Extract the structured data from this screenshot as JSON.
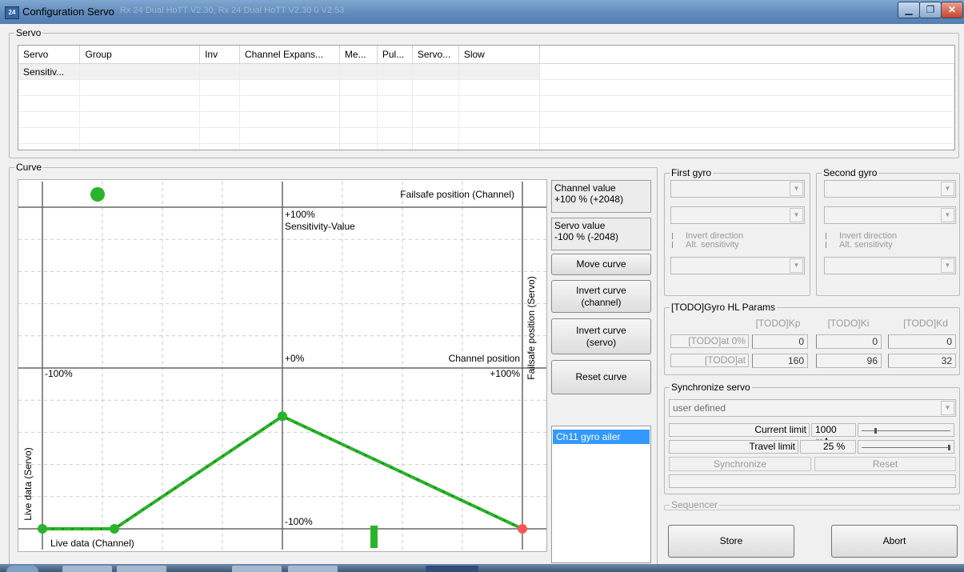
{
  "window": {
    "icon_text": "24",
    "title": "Configuration Servo",
    "title_extra": "Rx 24 Dual HoTT V2.30,  Rx 24 Dual HoTT V2.30 0 V2.53"
  },
  "servo_group": {
    "legend": "Servo",
    "columns": [
      "Servo",
      "Group",
      "Inv",
      "Channel Expans...",
      "Me...",
      "Pul...",
      "Servo...",
      "Slow"
    ],
    "rows": [
      [
        "Sensitiv...",
        "",
        "",
        "",
        "",
        "",
        "",
        ""
      ]
    ]
  },
  "curve": {
    "legend": "Curve",
    "labels": {
      "failsafe_channel": "Failsafe position (Channel)",
      "failsafe_servo": "Failsafe position (Servo)",
      "plus100_top": "+100%",
      "sensitivity": "Sensitivity-Value",
      "zero": "+0%",
      "channel_position": "Channel position",
      "minus100_left": "-100%",
      "plus100_right": "+100%",
      "minus100_bottom": "-100%",
      "live_servo": "Live data (Servo)",
      "live_channel": "Live data (Channel)"
    },
    "curve_points_percent": [
      [
        -100,
        -100
      ],
      [
        -70,
        -100
      ],
      [
        0,
        -30
      ],
      [
        100,
        -100
      ]
    ],
    "failsafe_point_percent": -77,
    "live_channel_percent": 38,
    "colors": {
      "curve": "#2bb32b",
      "end_point": "#ff5555",
      "grid": "#c9c9c9",
      "axis": "#666666"
    }
  },
  "values": {
    "channel_label": "Channel value",
    "channel_value": "+100 % (+2048)",
    "servo_label": "Servo value",
    "servo_value": "-100 % (-2048)"
  },
  "buttons": {
    "move": "Move curve",
    "invert_channel": "Invert curve (channel)",
    "invert_servo": "Invert curve (servo)",
    "reset": "Reset curve",
    "store": "Store",
    "abort": "Abort"
  },
  "channel_list": {
    "selected": "Ch11 gyro ailer"
  },
  "first_gyro": {
    "legend": "First gyro",
    "invert": "Invert direction",
    "alt": "Alt. sensitivity"
  },
  "second_gyro": {
    "legend": "Second gyro",
    "invert": "Invert direction",
    "alt": "Alt. sensitivity"
  },
  "gyro_hl": {
    "legend": "[TODO]Gyro HL Params",
    "headers": [
      "[TODO]Kp",
      "[TODO]Ki",
      "[TODO]Kd"
    ],
    "rows": [
      {
        "label": "[TODO]at 0%",
        "values": [
          "0",
          "0",
          "0"
        ]
      },
      {
        "label": "[TODO]at",
        "values": [
          "160",
          "96",
          "32"
        ]
      }
    ]
  },
  "sync": {
    "legend": "Synchronize servo",
    "mode": "user defined",
    "current_label": "Current limit",
    "current_value": "1000 mA",
    "current_level": 0.15,
    "travel_label": "Travel limit",
    "travel_value": "25 %",
    "travel_level": 1.0,
    "sync_button": "Synchronize",
    "reset_button": "Reset"
  },
  "sequencer": {
    "legend": "Sequencer"
  }
}
